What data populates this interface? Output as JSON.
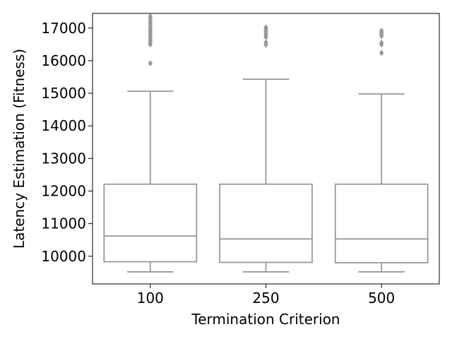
{
  "chart_data": {
    "type": "box",
    "xlabel": "Termination Criterion",
    "ylabel": "Latency Estimation (Fitness)",
    "ylim": [
      9150,
      17450
    ],
    "y_ticks": [
      10000,
      11000,
      12000,
      13000,
      14000,
      15000,
      16000,
      17000
    ],
    "y_tick_labels": [
      "10000",
      "11000",
      "12000",
      "13000",
      "14000",
      "15000",
      "16000",
      "17000"
    ],
    "categories": [
      "100",
      "250",
      "500"
    ],
    "boxes": [
      {
        "category": "100",
        "whisker_low": 9520,
        "q1": 9830,
        "median": 10620,
        "q3": 12210,
        "whisker_high": 15060,
        "outliers": [
          15920,
          16500,
          16560,
          16620,
          16700,
          16760,
          16820,
          16880,
          16940,
          17000,
          17060,
          17140,
          17220,
          17300,
          17360
        ]
      },
      {
        "category": "250",
        "whisker_low": 9520,
        "q1": 9810,
        "median": 10530,
        "q3": 12210,
        "whisker_high": 15430,
        "outliers": [
          16490,
          16560,
          16720,
          16780,
          16840,
          16900,
          16960,
          17020
        ]
      },
      {
        "category": "500",
        "whisker_low": 9520,
        "q1": 9800,
        "median": 10530,
        "q3": 12210,
        "whisker_high": 14980,
        "outliers": [
          16240,
          16500,
          16550,
          16760,
          16820,
          16880,
          16920
        ]
      }
    ],
    "grid": false,
    "legend": "none",
    "colors": {
      "box_line": "#999999",
      "box_fill": "#ffffff",
      "outlier": "#999999",
      "axes": "#000000"
    }
  }
}
